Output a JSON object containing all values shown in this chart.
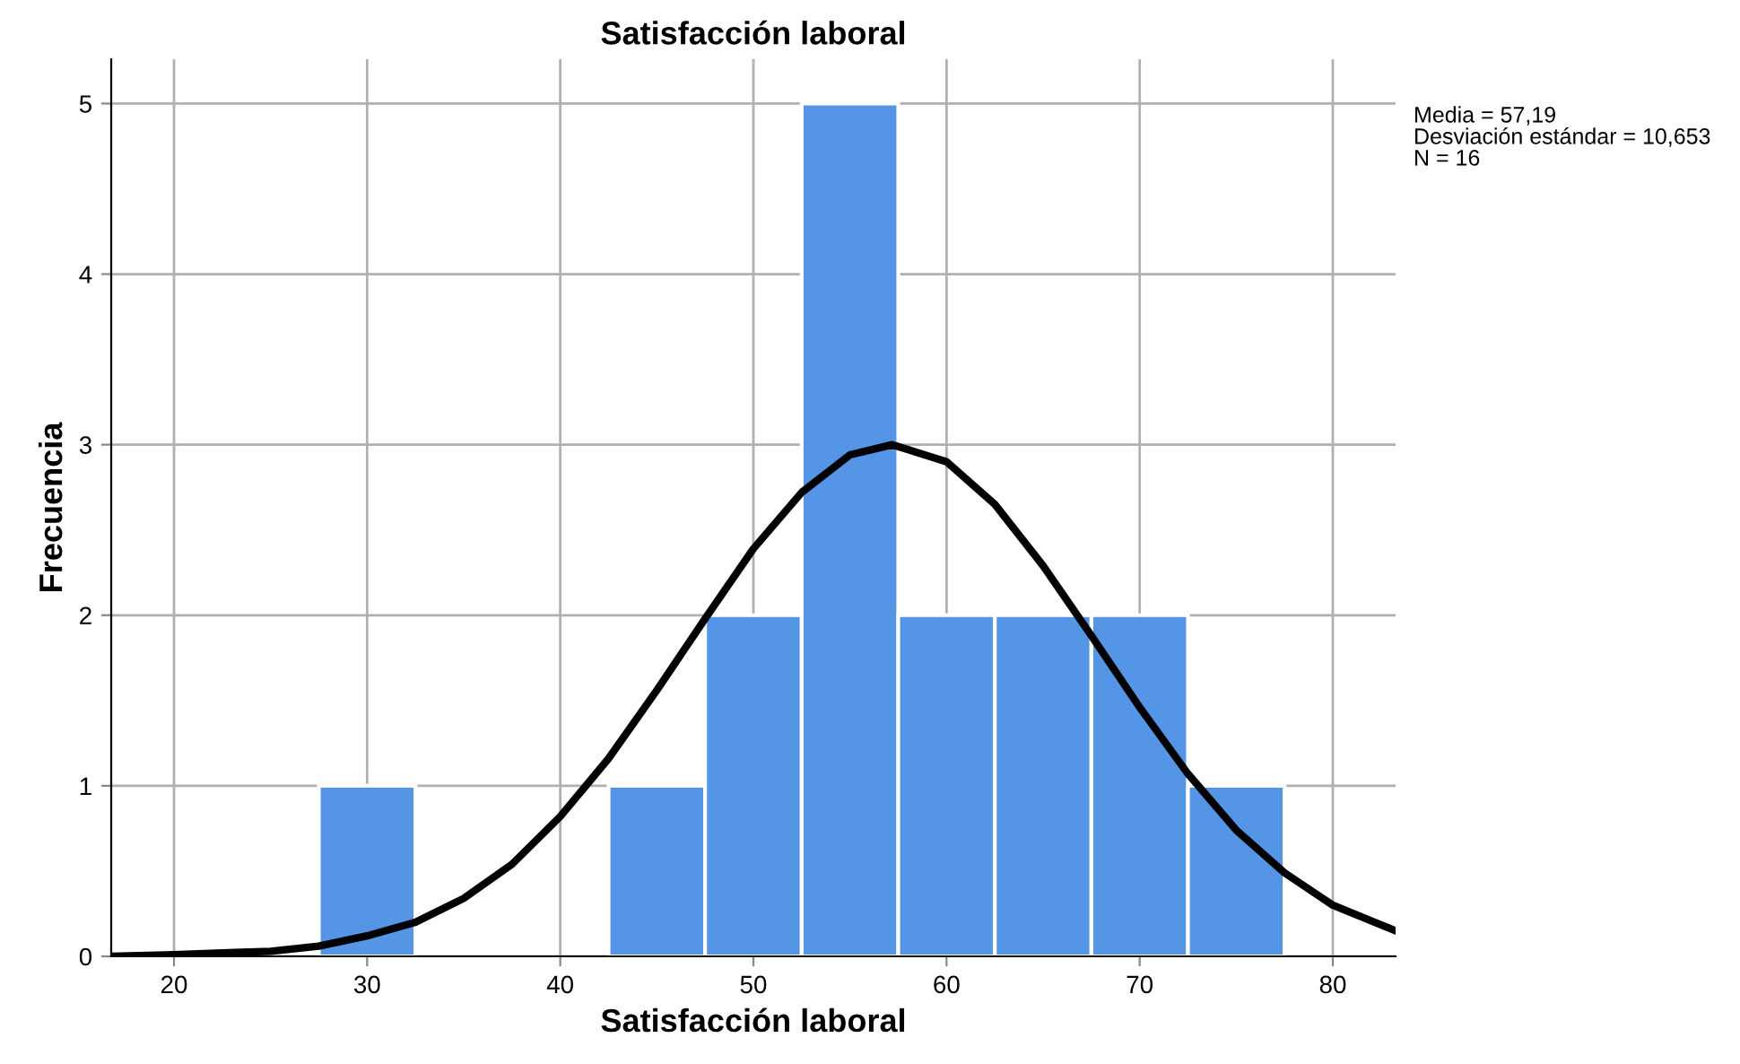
{
  "chart_data": {
    "type": "histogram",
    "title": "Satisfacción laboral",
    "xlabel": "Satisfacción laboral",
    "ylabel": "Frecuencia",
    "bins": [
      27.5,
      32.5,
      37.5,
      42.5,
      47.5,
      52.5,
      57.5,
      62.5,
      67.5,
      72.5,
      77.5
    ],
    "values": [
      1,
      0,
      0,
      1,
      2,
      5,
      2,
      2,
      2,
      1
    ],
    "color": "#5595e5",
    "series": [
      {
        "type": "line",
        "color": "#000000",
        "x": [
          16.75,
          20,
          22.5,
          25,
          27.5,
          30,
          32.5,
          35,
          37.5,
          40,
          42.5,
          45,
          47.5,
          50,
          52.5,
          55,
          57.19,
          60,
          62.5,
          65,
          67.5,
          70,
          72.5,
          75,
          77.5,
          80,
          83.25
        ],
        "values": [
          0.0,
          0.01,
          0.02,
          0.03,
          0.06,
          0.12,
          0.2,
          0.34,
          0.54,
          0.82,
          1.16,
          1.56,
          1.98,
          2.39,
          2.72,
          2.94,
          3.0,
          2.9,
          2.65,
          2.29,
          1.88,
          1.46,
          1.07,
          0.74,
          0.49,
          0.3,
          0.15
        ]
      }
    ],
    "xlim": [
      16.75,
      83.25
    ],
    "ylim": [
      0,
      5.26
    ],
    "xticks": [
      20,
      30,
      40,
      50,
      60,
      70,
      80
    ],
    "yticks": [
      0,
      1,
      2,
      3,
      4,
      5
    ],
    "grid": true,
    "line_style": "solid",
    "marker": "none",
    "annotations": [
      "Media = 57,19",
      "Desviación estándar = 10,653",
      "N = 16"
    ]
  }
}
